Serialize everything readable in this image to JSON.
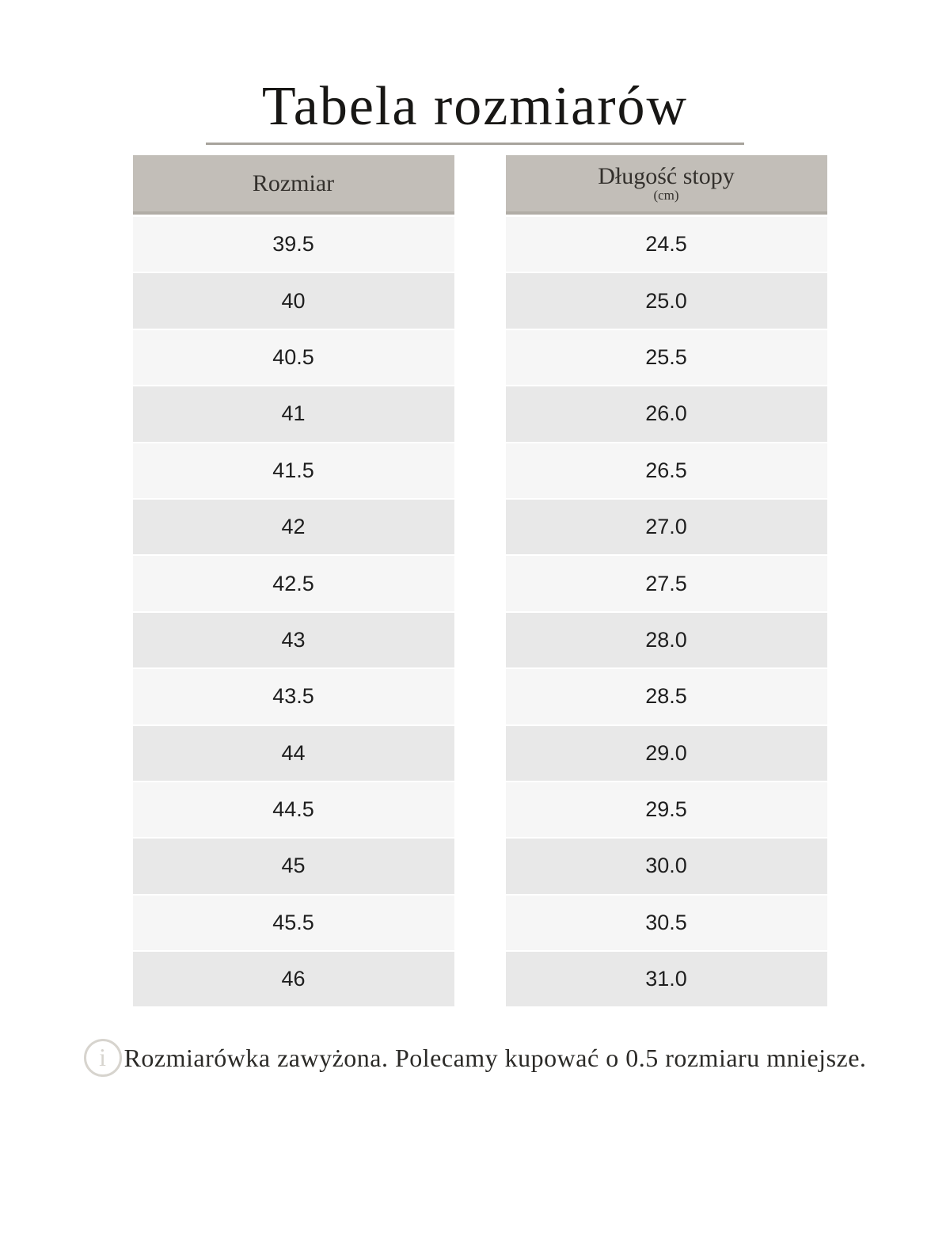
{
  "page": {
    "title": "Tabela rozmiarów",
    "background": "#ffffff"
  },
  "table": {
    "columns": [
      {
        "header": "Rozmiar",
        "subheader": null
      },
      {
        "header": "Długość stopy",
        "subheader": "(cm)"
      }
    ],
    "rows": [
      {
        "size": "39.5",
        "length_cm": "24.5"
      },
      {
        "size": "40",
        "length_cm": "25.0"
      },
      {
        "size": "40.5",
        "length_cm": "25.5"
      },
      {
        "size": "41",
        "length_cm": "26.0"
      },
      {
        "size": "41.5",
        "length_cm": "26.5"
      },
      {
        "size": "42",
        "length_cm": "27.0"
      },
      {
        "size": "42.5",
        "length_cm": "27.5"
      },
      {
        "size": "43",
        "length_cm": "28.0"
      },
      {
        "size": "43.5",
        "length_cm": "28.5"
      },
      {
        "size": "44",
        "length_cm": "29.0"
      },
      {
        "size": "44.5",
        "length_cm": "29.5"
      },
      {
        "size": "45",
        "length_cm": "30.0"
      },
      {
        "size": "45.5",
        "length_cm": "30.5"
      },
      {
        "size": "46",
        "length_cm": "31.0"
      }
    ],
    "colors": {
      "header_bg": "#c2beb8",
      "header_border": "#b1ada6",
      "row_light": "#f6f6f6",
      "row_dark": "#e8e8e8",
      "row_text": "#1e1e1e",
      "divider": "#a7a39c"
    }
  },
  "note": {
    "icon": "info-icon",
    "icon_glyph": "i",
    "text": "Rozmiarówka zawyżona. Polecamy kupować o 0.5 rozmiaru mniejsze."
  }
}
